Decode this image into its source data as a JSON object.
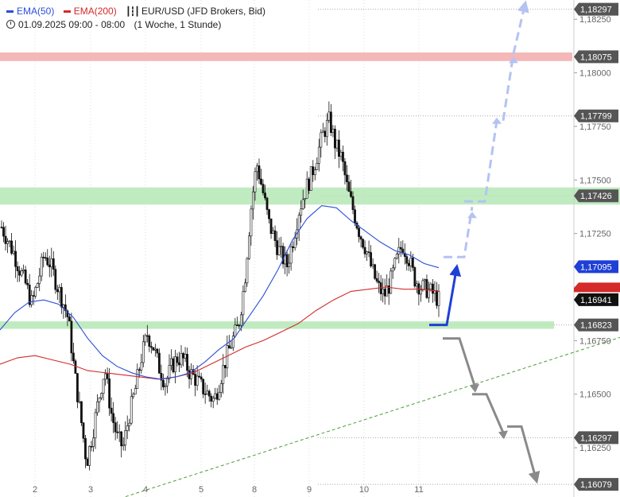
{
  "legend": {
    "ema50_label": "EMA(50)",
    "ema200_label": "EMA(200)",
    "instrument": "EUR/USD (JFD Brokers, Bid)",
    "period": "01.09.2025 09:00 - 08:00",
    "timeframe": "(1 Woche, 1 Stunde)"
  },
  "colors": {
    "ema50": "#2b4fd8",
    "ema200": "#d42a2a",
    "resistance_zone": "#f4b8b8",
    "support_zone": "#b5e8b5",
    "trendline": "#4c9a3c",
    "bullish_arrow": "#b5c3f2",
    "bearish_arrow": "#8a8a8a",
    "main_arrow": "#1f3fd6"
  },
  "chart_data": {
    "type": "candlestick",
    "x_tick_labels": [
      "2",
      "3",
      "4",
      "5",
      "8",
      "9",
      "10",
      "11"
    ],
    "y_tick_labels": [
      "1,18250",
      "1,18000",
      "1,17750",
      "1,17500",
      "1,17250",
      "1,17000",
      "1,16750",
      "1,16500",
      "1,16250"
    ],
    "ylim": [
      1.1602,
      1.1834
    ],
    "grid": "dotted",
    "series": [
      {
        "name": "EMA(50)",
        "last_value": "1,17095"
      },
      {
        "name": "EMA(200)",
        "last_value": ""
      }
    ],
    "price_levels": [
      {
        "label": "1,18297",
        "value": 1.18297
      },
      {
        "label": "1,18075",
        "value": 1.18075
      },
      {
        "label": "1,17799",
        "value": 1.17799
      },
      {
        "label": "1,17426",
        "value": 1.17426
      },
      {
        "label": "1,16823",
        "value": 1.16823
      },
      {
        "label": "1,16297",
        "value": 1.16297
      },
      {
        "label": "1,16079",
        "value": 1.16079
      }
    ],
    "current_price": {
      "label": "1,16941",
      "value": 1.16941
    },
    "resistance_zone": [
      1.18055,
      1.18095
    ],
    "support_zones": [
      [
        1.17385,
        1.17465
      ],
      [
        1.16805,
        1.1684
      ]
    ],
    "trendline": {
      "from": {
        "day": "2",
        "value": 1.1595
      },
      "to": {
        "day": "11",
        "value": 1.16765
      }
    },
    "price_path": [
      1.1728,
      1.1722,
      1.1716,
      1.1708,
      1.1701,
      1.1692,
      1.1703,
      1.1715,
      1.1711,
      1.1702,
      1.1694,
      1.1685,
      1.166,
      1.164,
      1.1618,
      1.1632,
      1.1648,
      1.1662,
      1.1642,
      1.163,
      1.1625,
      1.164,
      1.1652,
      1.1667,
      1.1678,
      1.1672,
      1.1662,
      1.1655,
      1.1663,
      1.1667,
      1.1666,
      1.166,
      1.1657,
      1.1653,
      1.165,
      1.1647,
      1.1657,
      1.1667,
      1.1675,
      1.1682,
      1.1702,
      1.1735,
      1.1758,
      1.1745,
      1.173,
      1.1722,
      1.1715,
      1.171,
      1.1722,
      1.1736,
      1.1745,
      1.1752,
      1.1762,
      1.1772,
      1.1778,
      1.1766,
      1.176,
      1.1745,
      1.1735,
      1.1725,
      1.1718,
      1.1708,
      1.17,
      1.1696,
      1.1702,
      1.1712,
      1.172,
      1.1714,
      1.1704,
      1.17,
      1.1699,
      1.1697,
      1.1694
    ],
    "ema50_path": [
      1.168,
      1.1688,
      1.1693,
      1.1694,
      1.1692,
      1.1686,
      1.1676,
      1.1668,
      1.1663,
      1.166,
      1.1658,
      1.1657,
      1.1658,
      1.166,
      1.1665,
      1.1671,
      1.1676,
      1.1686,
      1.1696,
      1.1708,
      1.1722,
      1.1732,
      1.1738,
      1.1737,
      1.1731,
      1.1726,
      1.1721,
      1.1717,
      1.1715,
      1.1711,
      1.1709
    ],
    "ema200_path": [
      1.1664,
      1.1667,
      1.1668,
      1.1666,
      1.1664,
      1.1661,
      1.166,
      1.1659,
      1.1658,
      1.1657,
      1.1658,
      1.166,
      1.1664,
      1.1668,
      1.1672,
      1.1675,
      1.1679,
      1.1683,
      1.1689,
      1.1694,
      1.1698,
      1.1699,
      1.17,
      1.1699,
      1.1699,
      1.1698
    ],
    "arrows": {
      "main_up": [
        1.16823,
        1.1708
      ],
      "bullish_targets": [
        1.17426,
        1.17799,
        1.18075,
        1.18297
      ],
      "bearish_targets": [
        1.165,
        1.16297,
        1.16079
      ]
    }
  }
}
